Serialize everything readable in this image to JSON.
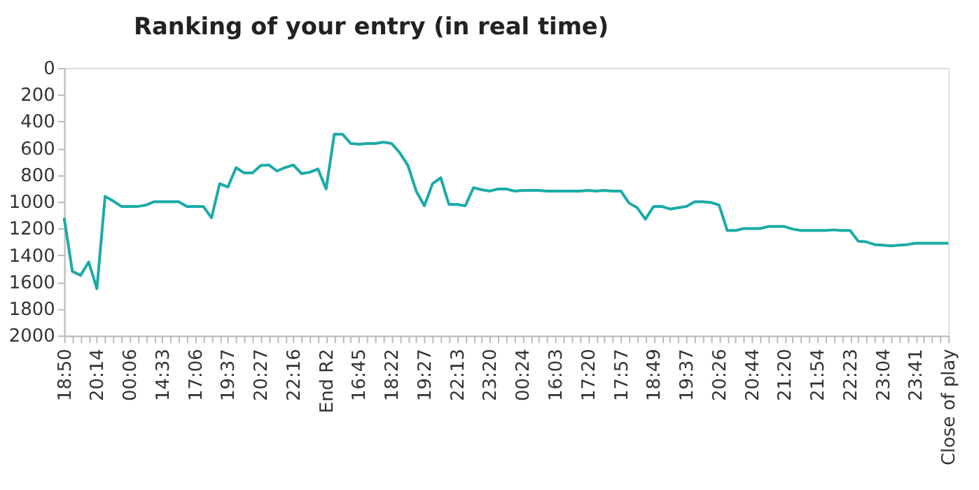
{
  "chart_data": {
    "type": "line",
    "title": "Ranking of your entry (in real time)",
    "categories": [
      "18:50",
      null,
      null,
      null,
      "20:14",
      null,
      null,
      null,
      "00:06",
      null,
      null,
      null,
      "14:33",
      null,
      null,
      null,
      "17:06",
      null,
      null,
      null,
      "19:37",
      null,
      null,
      null,
      "20:27",
      null,
      null,
      null,
      "22:16",
      null,
      null,
      null,
      "End R2",
      null,
      null,
      null,
      "16:45",
      null,
      null,
      null,
      "18:22",
      null,
      null,
      null,
      "19:27",
      null,
      null,
      null,
      "22:13",
      null,
      null,
      null,
      "23:20",
      null,
      null,
      null,
      "00:24",
      null,
      null,
      null,
      "16:03",
      null,
      null,
      null,
      "17:20",
      null,
      null,
      null,
      "17:57",
      null,
      null,
      null,
      "18:49",
      null,
      null,
      null,
      "19:37",
      null,
      null,
      null,
      "20:26",
      null,
      null,
      null,
      "20:44",
      null,
      null,
      null,
      "21:20",
      null,
      null,
      null,
      "21:54",
      null,
      null,
      null,
      "22:23",
      null,
      null,
      null,
      "23:04",
      null,
      null,
      null,
      "23:41",
      null,
      null,
      null,
      "Close of play"
    ],
    "series": [
      {
        "color": "#1aaba8",
        "values": [
          1120,
          1520,
          1550,
          1450,
          1650,
          960,
          995,
          1035,
          1035,
          1035,
          1025,
          1000,
          1000,
          1000,
          1000,
          1035,
          1035,
          1035,
          1120,
          865,
          890,
          745,
          785,
          785,
          730,
          725,
          770,
          745,
          725,
          790,
          780,
          755,
          905,
          495,
          495,
          565,
          570,
          565,
          565,
          555,
          565,
          635,
          730,
          920,
          1030,
          865,
          820,
          1020,
          1020,
          1030,
          895,
          910,
          920,
          905,
          905,
          920,
          915,
          915,
          915,
          920,
          920,
          920,
          920,
          920,
          915,
          920,
          915,
          920,
          920,
          1010,
          1045,
          1130,
          1035,
          1035,
          1055,
          1045,
          1035,
          1000,
          1000,
          1005,
          1025,
          1215,
          1215,
          1200,
          1200,
          1200,
          1185,
          1185,
          1185,
          1205,
          1215,
          1215,
          1215,
          1215,
          1210,
          1215,
          1215,
          1295,
          1300,
          1320,
          1325,
          1330,
          1325,
          1320,
          1310,
          1310,
          1310,
          1310,
          1310
        ]
      }
    ],
    "ylim": [
      2000,
      0
    ],
    "yticks": [
      0,
      200,
      400,
      600,
      800,
      1000,
      1200,
      1400,
      1600,
      1800,
      2000
    ],
    "grid": false,
    "legend": false,
    "marker": "none",
    "line_style": "solid"
  }
}
